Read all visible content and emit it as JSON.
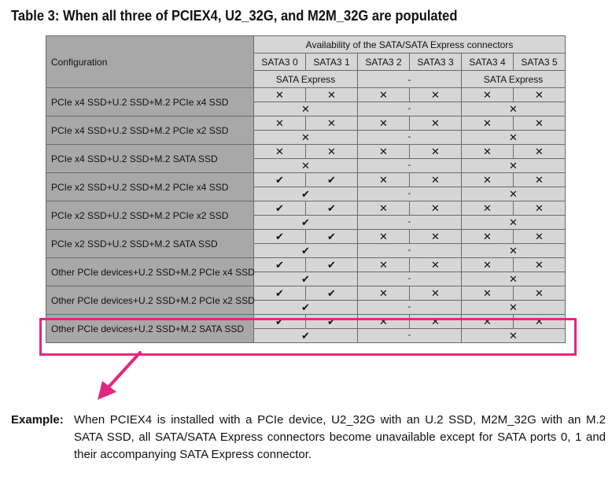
{
  "title": "Table 3: When all three of PCIEX4, U2_32G, and M2M_32G are populated",
  "table": {
    "config_header": "Configuration",
    "availability_header": "Availability of the SATA/SATA Express connectors",
    "ports": [
      "SATA3 0",
      "SATA3 1",
      "SATA3 2",
      "SATA3 3",
      "SATA3 4",
      "SATA3 5"
    ],
    "express_groups": [
      "SATA Express",
      "-",
      "SATA Express"
    ],
    "rows": [
      {
        "config": "PCIe x4 SSD+U.2 SSD+M.2 PCIe x4 SSD",
        "ports": [
          "✕",
          "✕",
          "✕",
          "✕",
          "✕",
          "✕"
        ],
        "express": [
          "✕",
          "-",
          "✕"
        ]
      },
      {
        "config": "PCIe x4 SSD+U.2 SSD+M.2 PCIe x2 SSD",
        "ports": [
          "✕",
          "✕",
          "✕",
          "✕",
          "✕",
          "✕"
        ],
        "express": [
          "✕",
          "-",
          "✕"
        ]
      },
      {
        "config": "PCIe x4 SSD+U.2 SSD+M.2 SATA SSD",
        "ports": [
          "✕",
          "✕",
          "✕",
          "✕",
          "✕",
          "✕"
        ],
        "express": [
          "✕",
          "-",
          "✕"
        ]
      },
      {
        "config": "PCIe x2 SSD+U.2 SSD+M.2 PCIe x4 SSD",
        "ports": [
          "✔",
          "✔",
          "✕",
          "✕",
          "✕",
          "✕"
        ],
        "express": [
          "✔",
          "-",
          "✕"
        ]
      },
      {
        "config": "PCIe x2 SSD+U.2 SSD+M.2 PCIe x2 SSD",
        "ports": [
          "✔",
          "✔",
          "✕",
          "✕",
          "✕",
          "✕"
        ],
        "express": [
          "✔",
          "-",
          "✕"
        ]
      },
      {
        "config": "PCIe x2 SSD+U.2 SSD+M.2 SATA SSD",
        "ports": [
          "✔",
          "✔",
          "✕",
          "✕",
          "✕",
          "✕"
        ],
        "express": [
          "✔",
          "-",
          "✕"
        ]
      },
      {
        "config": "Other PCIe devices+U.2 SSD+M.2 PCIe x4 SSD",
        "ports": [
          "✔",
          "✔",
          "✕",
          "✕",
          "✕",
          "✕"
        ],
        "express": [
          "✔",
          "-",
          "✕"
        ]
      },
      {
        "config": "Other PCIe devices+U.2 SSD+M.2 PCIe x2 SSD",
        "ports": [
          "✔",
          "✔",
          "✕",
          "✕",
          "✕",
          "✕"
        ],
        "express": [
          "✔",
          "-",
          "✕"
        ]
      },
      {
        "config": "Other PCIe devices+U.2 SSD+M.2 SATA SSD",
        "ports": [
          "✔",
          "✔",
          "✕",
          "✕",
          "✕",
          "✕"
        ],
        "express": [
          "✔",
          "-",
          "✕"
        ]
      }
    ]
  },
  "highlight_color": "#e5267f",
  "example": {
    "label": "Example:",
    "text": "When PCIEX4 is installed with a PCIe device, U2_32G with an U.2 SSD, M2M_32G with an M.2 SATA SSD, all SATA/SATA Express connectors become unavailable except for SATA ports 0, 1 and their accompanying SATA Express connector."
  }
}
